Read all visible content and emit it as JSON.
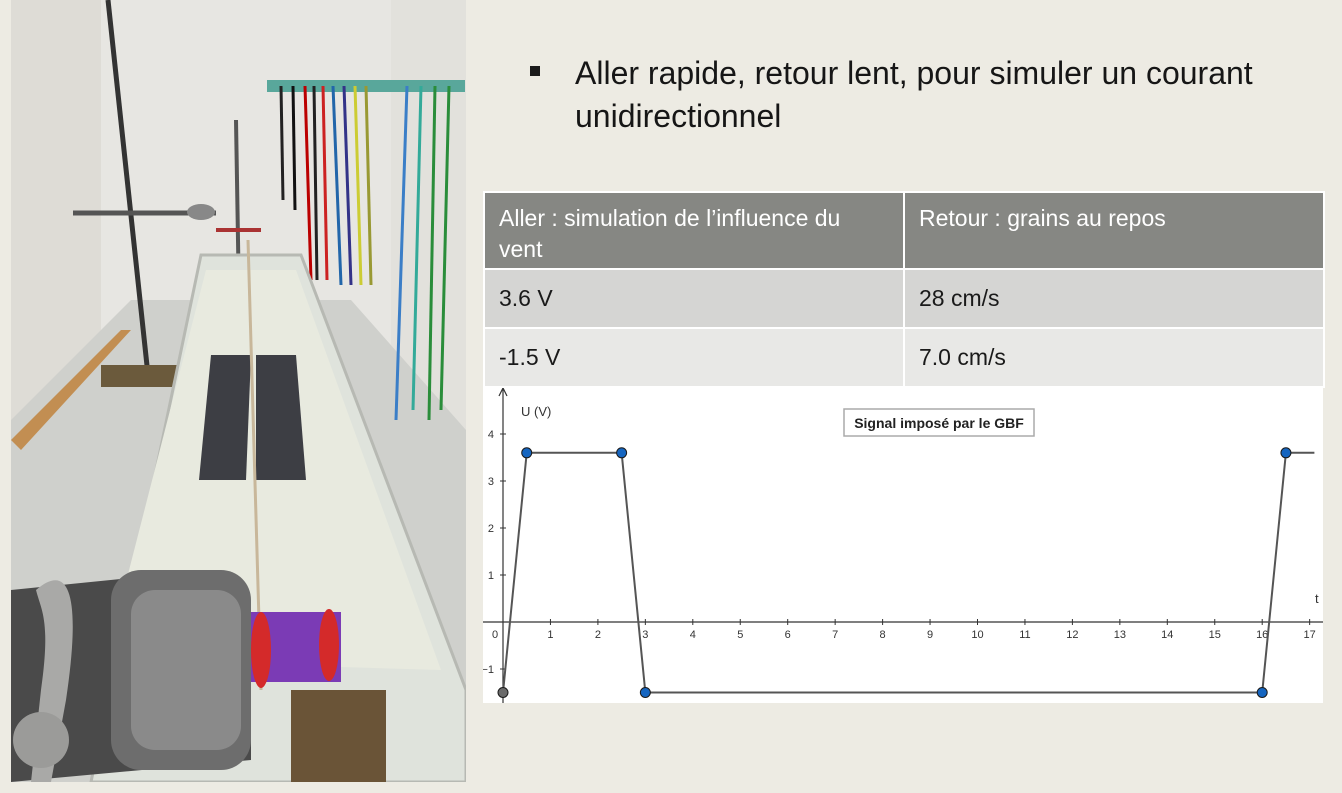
{
  "bullet": {
    "text": "Aller rapide, retour lent, pour simuler un courant unidirectionnel"
  },
  "table": {
    "headers": [
      "Aller : simulation de l’influence du vent",
      "Retour : grains au repos"
    ],
    "rows": [
      [
        "3.6 V",
        "28 cm/s"
      ],
      [
        "-1.5 V",
        "7.0 cm/s"
      ]
    ]
  },
  "photo": {
    "description_icon": "experimental-setup-photo"
  },
  "chart_data": {
    "type": "line",
    "title": "Signal imposé par le GBF",
    "xlabel": "t",
    "ylabel": "U (V)",
    "xlim": [
      0,
      17
    ],
    "ylim": [
      -1.5,
      4
    ],
    "x_ticks": [
      0,
      1,
      2,
      3,
      4,
      5,
      6,
      7,
      8,
      9,
      10,
      11,
      12,
      13,
      14,
      15,
      16,
      17
    ],
    "y_ticks": [
      4,
      3,
      2,
      1,
      -1
    ],
    "y_tick_labels": [
      "4",
      "3",
      "2",
      "1",
      "−1"
    ],
    "series": [
      {
        "x": [
          0,
          0.5,
          2.5,
          3,
          16,
          16.5,
          17.1
        ],
        "y": [
          -1.5,
          3.6,
          3.6,
          -1.5,
          -1.5,
          3.6,
          3.6
        ]
      }
    ],
    "points": [
      {
        "x": 0,
        "y": -1.5,
        "color": "#6b6b6b"
      },
      {
        "x": 0.5,
        "y": 3.6,
        "color": "#1565c0"
      },
      {
        "x": 2.5,
        "y": 3.6,
        "color": "#1565c0"
      },
      {
        "x": 3,
        "y": -1.5,
        "color": "#1565c0"
      },
      {
        "x": 16,
        "y": -1.5,
        "color": "#1565c0"
      },
      {
        "x": 16.5,
        "y": 3.6,
        "color": "#1565c0"
      }
    ],
    "line_color": "#555555",
    "grid": false
  }
}
